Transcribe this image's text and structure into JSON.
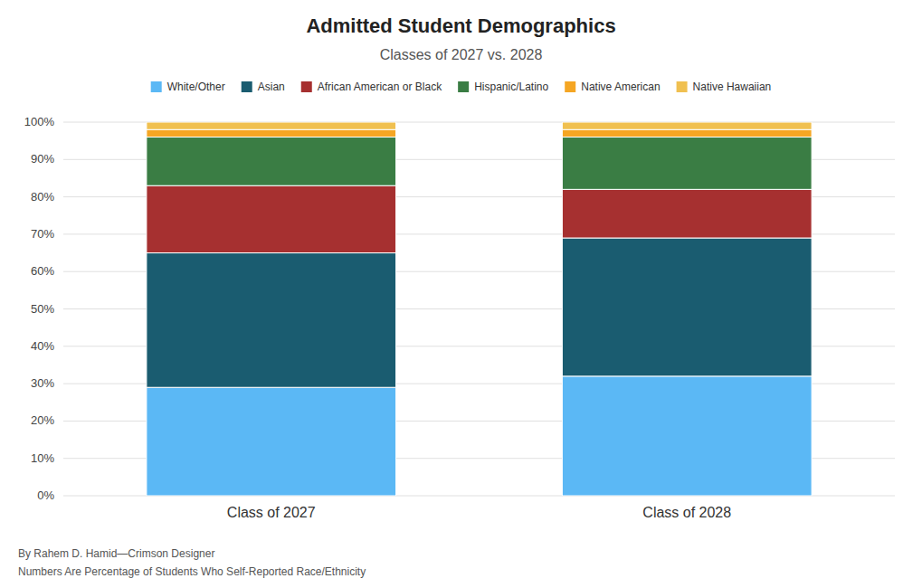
{
  "chart_data": {
    "type": "bar",
    "stacked": true,
    "title": "Admitted Student Demographics",
    "subtitle": "Classes of 2027 vs. 2028",
    "categories": [
      "Class of 2027",
      "Class of 2028"
    ],
    "series": [
      {
        "name": "White/Other",
        "color": "#5BB8F5",
        "values": [
          29,
          32
        ]
      },
      {
        "name": "Asian",
        "color": "#1A5C70",
        "values": [
          36,
          37
        ]
      },
      {
        "name": "African American or Black",
        "color": "#A63030",
        "values": [
          18,
          13
        ]
      },
      {
        "name": "Hispanic/Latino",
        "color": "#3A7D44",
        "values": [
          13,
          14
        ]
      },
      {
        "name": "Native American",
        "color": "#F5A623",
        "values": [
          2,
          2
        ]
      },
      {
        "name": "Native Hawaiian",
        "color": "#F0C050",
        "values": [
          2,
          2
        ]
      }
    ],
    "ylim": [
      0,
      100
    ],
    "yticks": [
      {
        "value": 0,
        "label": "0%"
      },
      {
        "value": 10,
        "label": "10%"
      },
      {
        "value": 20,
        "label": "20%"
      },
      {
        "value": 30,
        "label": "30%"
      },
      {
        "value": 40,
        "label": "40%"
      },
      {
        "value": 50,
        "label": "50%"
      },
      {
        "value": 60,
        "label": "60%"
      },
      {
        "value": 70,
        "label": "70%"
      },
      {
        "value": 80,
        "label": "80%"
      },
      {
        "value": 90,
        "label": "90%"
      },
      {
        "value": 100,
        "label": "100%"
      }
    ],
    "grid": true,
    "legend": "top",
    "annotations": [
      "By Rahem D. Hamid—Crimson Designer",
      "Numbers Are Percentage of Students Who Self-Reported Race/Ethnicity"
    ]
  }
}
